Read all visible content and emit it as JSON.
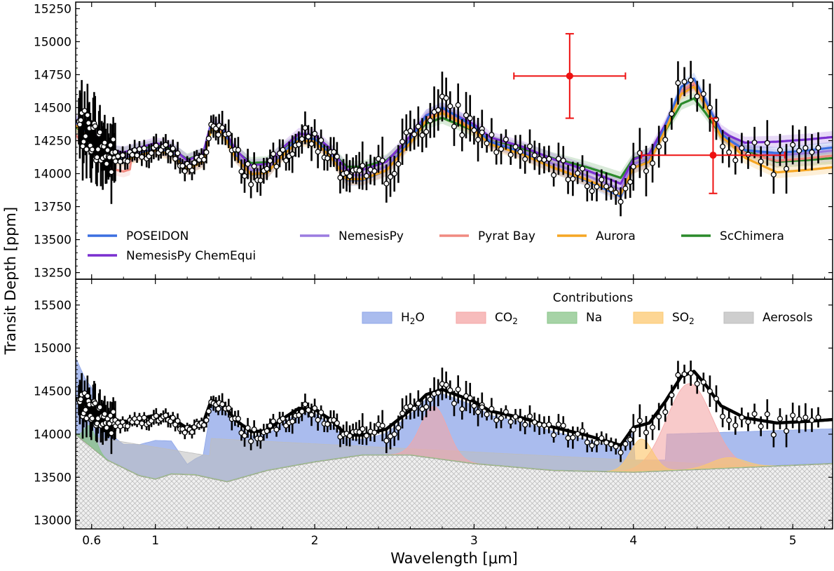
{
  "chart_data": [
    {
      "type": "line",
      "panel": "top",
      "xlabel": "Wavelength [μm]",
      "ylabel": "Transit Depth [ppm]",
      "xlim": [
        0.5,
        5.25
      ],
      "ylim": [
        13200,
        15300
      ],
      "yticks": [
        13250,
        13500,
        13750,
        14000,
        14250,
        14500,
        14750,
        15000,
        15250
      ],
      "xticks": [
        0.6,
        1,
        2,
        3,
        4,
        5
      ],
      "legend_position": "lower",
      "series": [
        {
          "name": "POSEIDON",
          "color": "#3b6fe0"
        },
        {
          "name": "NemesisPy",
          "color": "#9b7be0"
        },
        {
          "name": "Pyrat Bay",
          "color": "#f08a80"
        },
        {
          "name": "Aurora",
          "color": "#f5a623"
        },
        {
          "name": "ScChimera",
          "color": "#2a8a2a"
        },
        {
          "name": "NemesisPy ChemEqui",
          "color": "#7a2fd0"
        }
      ],
      "annotations": [
        {
          "label": "error-bar-cross-1",
          "x": 3.6,
          "y": 14740,
          "xerr": [
            3.25,
            3.95
          ],
          "yerr": [
            14420,
            15060
          ],
          "color": "#ee1111"
        },
        {
          "label": "error-bar-cross-2",
          "x": 4.5,
          "y": 14140,
          "xerr": [
            4.05,
            4.95
          ],
          "yerr": [
            13850,
            14420
          ],
          "color": "#ee1111"
        }
      ]
    },
    {
      "type": "area",
      "panel": "bottom",
      "xlabel": "Wavelength [μm]",
      "ylabel": "Transit Depth [ppm]",
      "xlim": [
        0.5,
        5.25
      ],
      "ylim": [
        12900,
        15800
      ],
      "yticks": [
        13000,
        13500,
        14000,
        14500,
        15000,
        15500
      ],
      "xticks": [
        0.6,
        1,
        2,
        3,
        4,
        5
      ],
      "legend_title": "Contributions",
      "legend_position": "top-right",
      "series": [
        {
          "name": "H2O",
          "label_main": "H",
          "label_sub": "2",
          "label_tail": "O",
          "color": "#8ea6e8"
        },
        {
          "name": "CO2",
          "label_main": "CO",
          "label_sub": "2",
          "label_tail": "",
          "color": "#f4a6a6"
        },
        {
          "name": "Na",
          "label_main": "Na",
          "label_sub": "",
          "label_tail": "",
          "color": "#88c488"
        },
        {
          "name": "SO2",
          "label_main": "SO",
          "label_sub": "2",
          "label_tail": "",
          "color": "#fcc870"
        },
        {
          "name": "Aerosols",
          "label_main": "Aerosols",
          "label_sub": "",
          "label_tail": "",
          "color": "#bdbdbd"
        }
      ]
    }
  ]
}
